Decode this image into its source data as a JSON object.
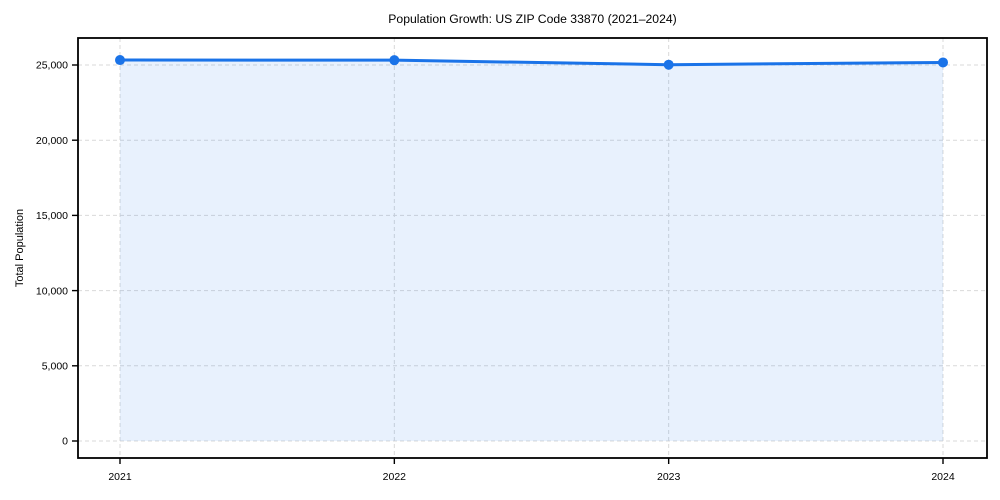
{
  "chart_data": {
    "type": "line",
    "title": "Population Growth: US ZIP Code 33870 (2021–2024)",
    "xlabel": "",
    "ylabel": "Total Population",
    "categories": [
      "2021",
      "2022",
      "2023",
      "2024"
    ],
    "series": [
      {
        "name": "Total Population",
        "values": [
          25330,
          25320,
          25020,
          25170
        ]
      }
    ],
    "yticks": [
      0,
      5000,
      10000,
      15000,
      20000,
      25000
    ],
    "ytick_labels": [
      "0",
      "5,000",
      "10,000",
      "15,000",
      "20,000",
      "25,000"
    ],
    "ylim": [
      -1100,
      26800
    ],
    "grid": true,
    "grid_style": "dashed",
    "legend_position": "none",
    "area_fill_to_zero": true,
    "colors": {
      "line": "#1a73e8",
      "marker": "#1a73e8",
      "area_fill": "#e8f0fc",
      "grid": "#d9d9d9",
      "spine": "#000000",
      "text": "#000000",
      "background": "#ffffff"
    }
  }
}
